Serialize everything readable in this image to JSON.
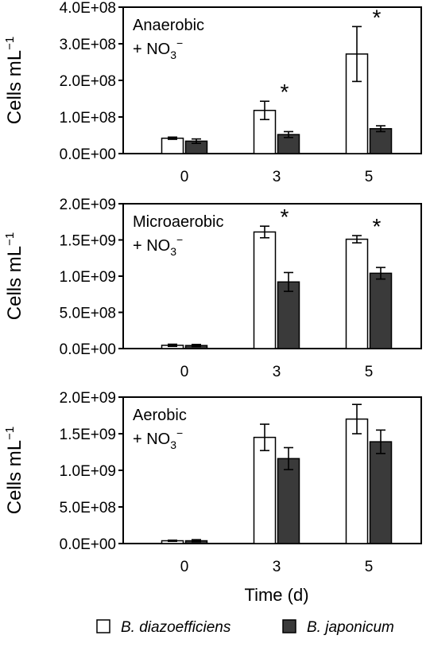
{
  "chart_data": [
    {
      "type": "bar",
      "condition_line1": "Anaerobic",
      "condition_line2": "+ NO",
      "condition_sub": "3",
      "condition_sup": "−",
      "ylabel": "Cells mL",
      "ylabel_sup": "−1",
      "yticks": [
        "0.0E+00",
        "1.0E+08",
        "2.0E+08",
        "3.0E+08",
        "4.0E+08"
      ],
      "ylim": [
        0,
        400000000
      ],
      "categories": [
        "0",
        "3",
        "5"
      ],
      "series": [
        {
          "name": "B. diazoefficiens",
          "values": [
            42000000,
            118000000,
            272000000
          ],
          "errors": [
            3000000,
            25000000,
            75000000
          ],
          "color": "#ffffff"
        },
        {
          "name": "B. japonicum",
          "values": [
            34000000,
            52000000,
            68000000
          ],
          "errors": [
            6000000,
            8000000,
            8000000
          ],
          "color": "#3a3a3a"
        }
      ],
      "significance": [
        "",
        "*",
        "*"
      ]
    },
    {
      "type": "bar",
      "condition_line1": "Microaerobic",
      "condition_line2": "+ NO",
      "condition_sub": "3",
      "condition_sup": "−",
      "ylabel": "Cells mL",
      "ylabel_sup": "−1",
      "yticks": [
        "0.0E+00",
        "5.0E+08",
        "1.0E+09",
        "1.5E+09",
        "2.0E+09"
      ],
      "ylim": [
        0,
        2000000000
      ],
      "categories": [
        "0",
        "3",
        "5"
      ],
      "series": [
        {
          "name": "B. diazoefficiens",
          "values": [
            45000000,
            1610000000,
            1510000000
          ],
          "errors": [
            15000000,
            80000000,
            50000000
          ],
          "color": "#ffffff"
        },
        {
          "name": "B. japonicum",
          "values": [
            42000000,
            920000000,
            1040000000
          ],
          "errors": [
            15000000,
            130000000,
            80000000
          ],
          "color": "#3a3a3a"
        }
      ],
      "significance": [
        "",
        "*",
        "*"
      ]
    },
    {
      "type": "bar",
      "condition_line1": "Aerobic",
      "condition_line2": "+ NO",
      "condition_sub": "3",
      "condition_sup": "−",
      "ylabel": "Cells mL",
      "ylabel_sup": "−1",
      "yticks": [
        "0.0E+00",
        "5.0E+08",
        "1.0E+09",
        "1.5E+09",
        "2.0E+09"
      ],
      "ylim": [
        0,
        2000000000
      ],
      "categories": [
        "0",
        "3",
        "5"
      ],
      "series": [
        {
          "name": "B. diazoefficiens",
          "values": [
            38000000,
            1450000000,
            1700000000
          ],
          "errors": [
            8000000,
            180000000,
            200000000
          ],
          "color": "#ffffff"
        },
        {
          "name": "B. japonicum",
          "values": [
            38000000,
            1160000000,
            1390000000
          ],
          "errors": [
            15000000,
            150000000,
            160000000
          ],
          "color": "#3a3a3a"
        }
      ],
      "significance": [
        "",
        "",
        ""
      ]
    }
  ],
  "xlabel": "Time (d)",
  "legend": [
    {
      "label": "B. diazoefficiens",
      "color": "#ffffff"
    },
    {
      "label": "B. japonicum",
      "color": "#3a3a3a"
    }
  ]
}
